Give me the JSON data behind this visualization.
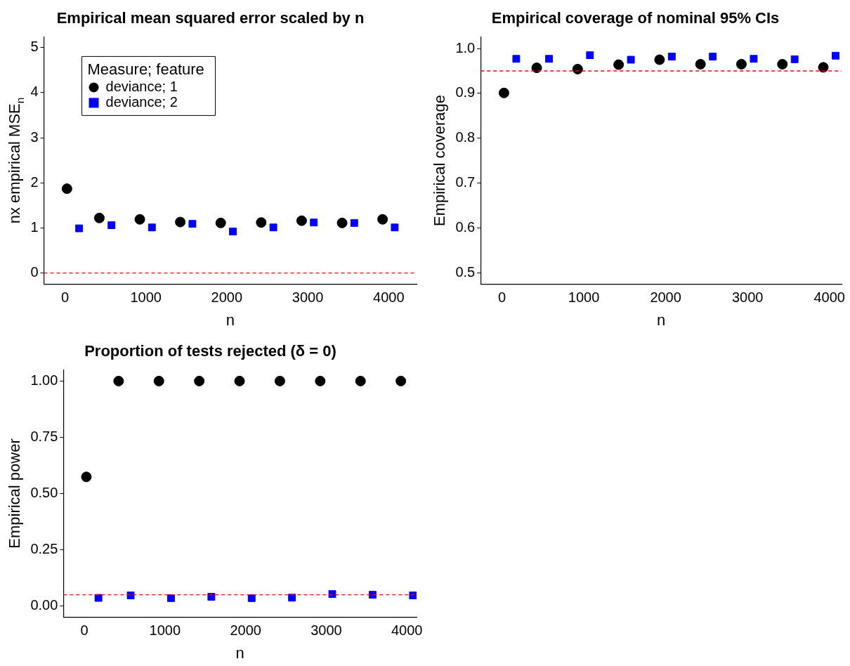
{
  "chart_data": [
    {
      "type": "scatter",
      "title": "Empirical mean squared error scaled by n",
      "xlabel": "n",
      "ylabel": "nx empirical MSE$_{n}$",
      "legend_title": "Measure; feature",
      "legend": "top left",
      "grid": false,
      "xlim": [
        -260,
        4345
      ],
      "xticks": [
        0,
        1000,
        2000,
        3000,
        4000
      ],
      "ylim": [
        -0.25,
        5.24
      ],
      "yticks": [
        0,
        1,
        2,
        3,
        4,
        5
      ],
      "ref_lines": [
        {
          "axis": "y",
          "value": 0,
          "color": "#ff0000",
          "line_style": "dashed"
        }
      ],
      "series": [
        {
          "name": "deviance; 1",
          "color": "#000000",
          "marker": "circle",
          "x": [
            25,
            425,
            925,
            1425,
            1925,
            2425,
            2925,
            3425,
            3925
          ],
          "values": [
            1.87,
            1.22,
            1.19,
            1.13,
            1.11,
            1.12,
            1.16,
            1.11,
            1.19
          ]
        },
        {
          "name": "deviance; 2",
          "color": "#0000ff",
          "marker": "square",
          "x": [
            175,
            575,
            1075,
            1575,
            2075,
            2575,
            3075,
            3575,
            4075
          ],
          "values": [
            0.99,
            1.06,
            1.01,
            1.09,
            0.92,
            1.01,
            1.12,
            1.11,
            1.01
          ]
        }
      ]
    },
    {
      "type": "scatter",
      "title": "Empirical coverage of nominal 95% CIs",
      "xlabel": "n",
      "ylabel": "Empirical coverage",
      "legend": false,
      "grid": false,
      "xlim": [
        -260,
        4148
      ],
      "xticks": [
        0,
        1000,
        2000,
        3000,
        4000
      ],
      "ylim": [
        0.475,
        1.026
      ],
      "yticks": [
        0.5,
        0.6,
        0.7,
        0.8,
        0.9,
        {
          "value": 1,
          "label": "1.0"
        }
      ],
      "ref_lines": [
        {
          "axis": "y",
          "value": 0.95,
          "color": "#ff0000",
          "line_style": "dashed"
        }
      ],
      "series": [
        {
          "color": "#000000",
          "marker": "circle",
          "x": [
            25,
            425,
            925,
            1425,
            1925,
            2425,
            2925,
            3425,
            3925
          ],
          "values": [
            0.901,
            0.957,
            0.954,
            0.964,
            0.975,
            0.965,
            0.965,
            0.965,
            0.958
          ]
        },
        {
          "color": "#0000ff",
          "marker": "square",
          "x": [
            175,
            575,
            1075,
            1575,
            2075,
            2575,
            3075,
            3575,
            4075
          ],
          "values": [
            0.977,
            0.977,
            0.985,
            0.975,
            0.982,
            0.982,
            0.977,
            0.976,
            0.984
          ]
        }
      ]
    },
    {
      "type": "scatter",
      "title": "Proportion of tests rejected (δ = 0)",
      "xlabel": "n",
      "ylabel": "Empirical power",
      "legend": false,
      "grid": false,
      "xlim": [
        -259,
        4120
      ],
      "xticks": [
        0,
        1000,
        2000,
        3000,
        4000
      ],
      "ylim": [
        -0.05,
        1.05
      ],
      "yticks": [
        {
          "value": 0,
          "label": "0.00"
        },
        {
          "value": 0.25,
          "label": "0.25"
        },
        {
          "value": 0.5,
          "label": "0.50"
        },
        {
          "value": 0.75,
          "label": "0.75"
        },
        {
          "value": 1,
          "label": "1.00"
        }
      ],
      "ref_lines": [
        {
          "axis": "y",
          "value": 0.05,
          "color": "#ff0000",
          "line_style": "dashed"
        }
      ],
      "series": [
        {
          "color": "#000000",
          "marker": "circle",
          "x": [
            25,
            425,
            925,
            1425,
            1925,
            2425,
            2925,
            3425,
            3925
          ],
          "values": [
            0.574,
            1,
            1,
            1,
            1,
            1,
            1,
            1,
            1
          ]
        },
        {
          "color": "#0000ff",
          "marker": "square",
          "x": [
            175,
            575,
            1075,
            1575,
            2075,
            2575,
            3075,
            3575,
            4075
          ],
          "values": [
            0.036,
            0.047,
            0.035,
            0.041,
            0.035,
            0.037,
            0.053,
            0.05,
            0.047
          ]
        }
      ]
    }
  ]
}
